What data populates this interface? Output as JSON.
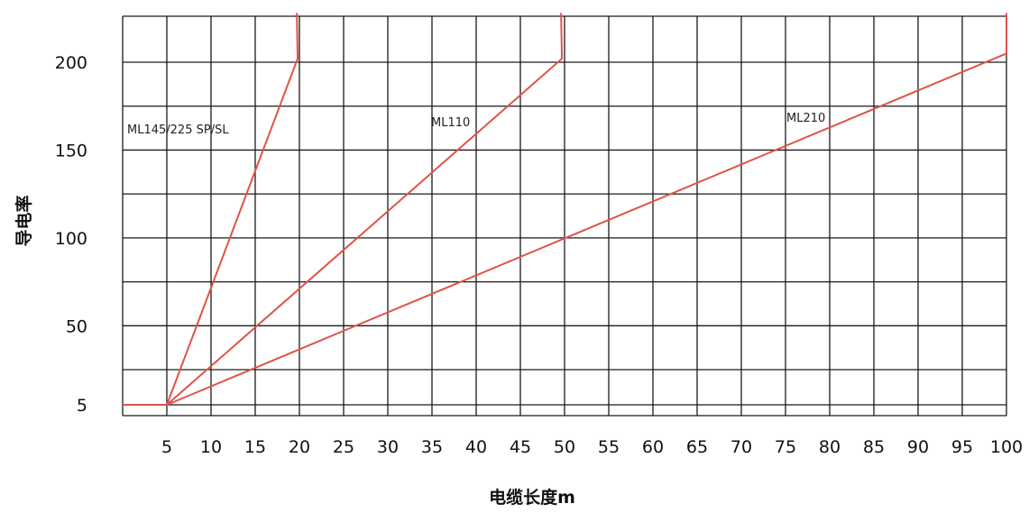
{
  "chart_data": {
    "type": "line",
    "xlabel": "电缆长度m",
    "ylabel": "导电率",
    "x_ticks": [
      5,
      10,
      15,
      20,
      25,
      30,
      35,
      40,
      45,
      50,
      55,
      60,
      65,
      70,
      75,
      80,
      85,
      90,
      95,
      100
    ],
    "y_ticks": [
      5,
      50,
      100,
      150,
      200
    ],
    "xlim": [
      0,
      100
    ],
    "ylim": [
      0,
      225
    ],
    "grid": true,
    "series": [
      {
        "name": "ML145/225  SP/SL",
        "color": "#e0534a",
        "points": [
          [
            0,
            5
          ],
          [
            5,
            5
          ],
          [
            19.8,
            202
          ],
          [
            19.7,
            228
          ]
        ]
      },
      {
        "name": "ML110",
        "color": "#e0534a",
        "points": [
          [
            5,
            5
          ],
          [
            49.7,
            202
          ],
          [
            49.6,
            228
          ]
        ]
      },
      {
        "name": "ML210",
        "color": "#e0534a",
        "points": [
          [
            5,
            5
          ],
          [
            100,
            205
          ],
          [
            100,
            228
          ]
        ]
      }
    ]
  }
}
